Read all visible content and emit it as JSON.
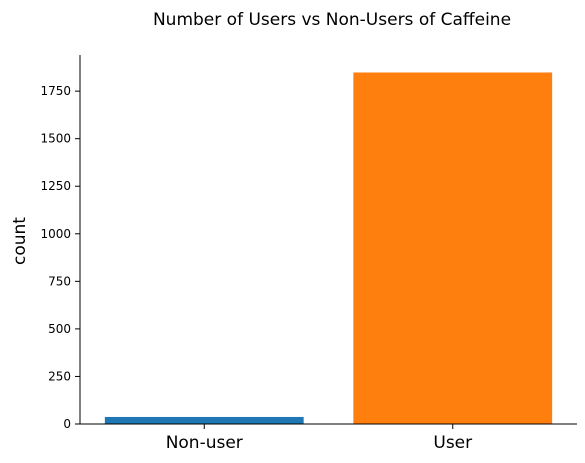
{
  "chart_data": {
    "type": "bar",
    "title": "Number of Users vs Non-Users of Caffeine",
    "xlabel": "",
    "ylabel": "count",
    "categories": [
      "Non-user",
      "User"
    ],
    "values": [
      37,
      1848
    ],
    "colors": [
      "#1f77b4",
      "#ff7f0e"
    ],
    "ylim": [
      0,
      1940
    ],
    "yticks": [
      0,
      250,
      500,
      750,
      1000,
      1250,
      1500,
      1750
    ],
    "ytick_labels": [
      "0",
      "250",
      "500",
      "750",
      "1000",
      "1250",
      "1500",
      "1750"
    ],
    "grid": false,
    "legend": "none"
  }
}
